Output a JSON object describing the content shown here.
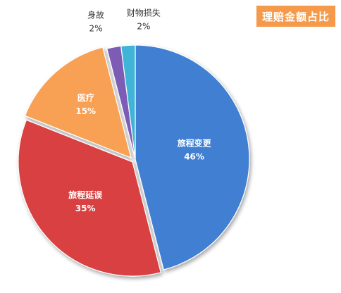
{
  "chart_data": {
    "type": "pie",
    "title": "理赔金额占比",
    "slices": [
      {
        "label": "旅程变更",
        "value": 46,
        "pct_label": "46%",
        "color": "#3f7fd1",
        "label_style": "inside"
      },
      {
        "label": "旅程延误",
        "value": 35,
        "pct_label": "35%",
        "color": "#d94043",
        "label_style": "inside"
      },
      {
        "label": "医疗",
        "value": 15,
        "pct_label": "15%",
        "color": "#f8a052",
        "label_style": "inside"
      },
      {
        "label": "身故",
        "value": 2,
        "pct_label": "2%",
        "color": "#7b5bb5",
        "label_style": "outside"
      },
      {
        "label": "财物损失",
        "value": 2,
        "pct_label": "2%",
        "color": "#3fb4d6",
        "label_style": "outside"
      }
    ]
  }
}
